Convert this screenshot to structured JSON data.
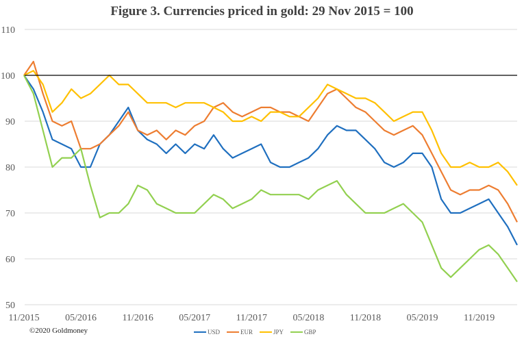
{
  "chart_data": {
    "type": "line",
    "title": "Figure 3. Currencies priced in gold: 29 Nov 2015 = 100",
    "xlabel": "",
    "ylabel": "",
    "ylim": [
      50,
      110
    ],
    "yticks": [
      "50",
      "60",
      "70",
      "80",
      "90",
      "100",
      "110"
    ],
    "xticks": [
      "11/2015",
      "05/2016",
      "11/2016",
      "05/2017",
      "11/2017",
      "05/2018",
      "11/2018",
      "05/2019",
      "11/2019"
    ],
    "x": [
      "2015-11",
      "2015-12",
      "2016-01",
      "2016-02",
      "2016-03",
      "2016-04",
      "2016-05",
      "2016-06",
      "2016-07",
      "2016-08",
      "2016-09",
      "2016-10",
      "2016-11",
      "2016-12",
      "2017-01",
      "2017-02",
      "2017-03",
      "2017-04",
      "2017-05",
      "2017-06",
      "2017-07",
      "2017-08",
      "2017-09",
      "2017-10",
      "2017-11",
      "2017-12",
      "2018-01",
      "2018-02",
      "2018-03",
      "2018-04",
      "2018-05",
      "2018-06",
      "2018-07",
      "2018-08",
      "2018-09",
      "2018-10",
      "2018-11",
      "2018-12",
      "2019-01",
      "2019-02",
      "2019-03",
      "2019-04",
      "2019-05",
      "2019-06",
      "2019-07",
      "2019-08",
      "2019-09",
      "2019-10",
      "2019-11",
      "2019-12",
      "2020-01",
      "2020-02",
      "2020-03"
    ],
    "reference_line": 100,
    "grid": true,
    "legend_position": "bottom",
    "series": [
      {
        "name": "USD",
        "color": "#1f6fbf",
        "values": [
          100,
          97,
          92,
          86,
          85,
          84,
          80,
          80,
          85,
          87,
          90,
          93,
          88,
          86,
          85,
          83,
          85,
          83,
          85,
          84,
          87,
          84,
          82,
          83,
          84,
          85,
          81,
          80,
          80,
          81,
          82,
          84,
          87,
          89,
          88,
          88,
          86,
          84,
          81,
          80,
          81,
          83,
          83,
          80,
          73,
          70,
          70,
          71,
          72,
          73,
          70,
          67,
          63
        ]
      },
      {
        "name": "EUR",
        "color": "#ed7d31",
        "values": [
          100,
          103,
          96,
          90,
          89,
          90,
          84,
          84,
          85,
          87,
          89,
          92,
          88,
          87,
          88,
          86,
          88,
          87,
          89,
          90,
          93,
          94,
          92,
          91,
          92,
          93,
          93,
          92,
          92,
          91,
          90,
          93,
          96,
          97,
          95,
          93,
          92,
          90,
          88,
          87,
          88,
          89,
          87,
          83,
          79,
          75,
          74,
          75,
          75,
          76,
          75,
          72,
          68
        ]
      },
      {
        "name": "JPY",
        "color": "#ffc000",
        "values": [
          100,
          101,
          98,
          92,
          94,
          97,
          95,
          96,
          98,
          100,
          98,
          98,
          96,
          94,
          94,
          94,
          93,
          94,
          94,
          94,
          93,
          92,
          90,
          90,
          91,
          90,
          92,
          92,
          91,
          91,
          93,
          95,
          98,
          97,
          96,
          95,
          95,
          94,
          92,
          90,
          91,
          92,
          92,
          88,
          83,
          80,
          80,
          81,
          80,
          80,
          81,
          79,
          76
        ]
      },
      {
        "name": "GBP",
        "color": "#92d050",
        "values": [
          100,
          96,
          88,
          80,
          82,
          82,
          84,
          76,
          69,
          70,
          70,
          72,
          76,
          75,
          72,
          71,
          70,
          70,
          70,
          72,
          74,
          73,
          71,
          72,
          73,
          75,
          74,
          74,
          74,
          74,
          73,
          75,
          76,
          77,
          74,
          72,
          70,
          70,
          70,
          71,
          72,
          70,
          68,
          63,
          58,
          56,
          58,
          60,
          62,
          63,
          61,
          58,
          55
        ]
      }
    ]
  },
  "footer": {
    "copyright": "©2020 Goldmoney"
  }
}
